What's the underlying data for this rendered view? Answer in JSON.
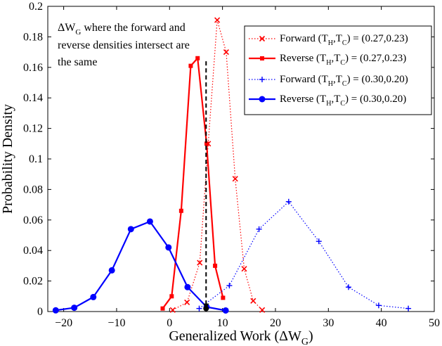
{
  "chart_data": {
    "type": "line",
    "xlabel_main": "Generalized Work (ΔW",
    "xlabel_sub": "G",
    "xlabel_end": ")",
    "ylabel": "Probability Density",
    "xlim": [
      -23,
      50
    ],
    "ylim": [
      0,
      0.2
    ],
    "xticks": [
      -20,
      -10,
      0,
      10,
      20,
      30,
      40,
      50
    ],
    "xtick_labels": [
      "−20",
      "−10",
      "0",
      "10",
      "20",
      "30",
      "40",
      "50"
    ],
    "yticks": [
      0,
      0.02,
      0.04,
      0.06,
      0.08,
      0.1,
      0.12,
      0.14,
      0.16,
      0.18,
      0.2
    ],
    "ytick_labels": [
      "0",
      "0.02",
      "0.04",
      "0.06",
      "0.08",
      "0.1",
      "0.12",
      "0.14",
      "0.16",
      "0.18",
      "0.2"
    ],
    "series": [
      {
        "name": "Forward (T_H,T_C) = (0.27,0.23)",
        "legend_pre": "Forward (T",
        "legend_s1": "H",
        "legend_mid": ",T",
        "legend_s2": "C",
        "legend_post": ") = (0.27,0.23)",
        "color": "#ff0000",
        "line": "dotted",
        "marker": "x",
        "x": [
          0.6,
          3.3,
          5.7,
          7.3,
          9.0,
          10.7,
          12.4,
          14.1,
          15.8,
          17.5
        ],
        "y": [
          0.001,
          0.006,
          0.032,
          0.11,
          0.191,
          0.17,
          0.087,
          0.028,
          0.007,
          0.001
        ]
      },
      {
        "name": "Reverse (T_H,T_C) = (0.27,0.23)",
        "legend_pre": "Reverse (T",
        "legend_s1": "H",
        "legend_mid": ",T",
        "legend_s2": "C",
        "legend_post": ") = (0.27,0.23)",
        "color": "#ff0000",
        "line": "solid",
        "marker": "square",
        "x": [
          -1.3,
          0.4,
          2.2,
          4.0,
          5.3,
          7.0,
          8.6,
          10.1
        ],
        "y": [
          0.002,
          0.01,
          0.066,
          0.161,
          0.166,
          0.11,
          0.03,
          0.009
        ]
      },
      {
        "name": "Forward (T_H,T_C) = (0.30,0.20)",
        "legend_pre": "Forward (T",
        "legend_s1": "H",
        "legend_mid": ",T",
        "legend_s2": "C",
        "legend_post": ") = (0.30,0.20)",
        "color": "#0000ff",
        "line": "dotted",
        "marker": "plus",
        "x": [
          5.6,
          11.3,
          16.9,
          22.5,
          28.2,
          33.8,
          39.5,
          45.1
        ],
        "y": [
          0.002,
          0.017,
          0.054,
          0.072,
          0.046,
          0.016,
          0.004,
          0.002
        ]
      },
      {
        "name": "Reverse (T_H,T_C) = (0.30,0.20)",
        "legend_pre": "Reverse (T",
        "legend_s1": "H",
        "legend_mid": ",T",
        "legend_s2": "C",
        "legend_post": ") = (0.30,0.20)",
        "color": "#0000ff",
        "line": "solid",
        "marker": "circle",
        "x": [
          -21.5,
          -18.0,
          -14.4,
          -10.9,
          -7.3,
          -3.7,
          -0.2,
          3.4,
          7.0,
          10.6
        ],
        "y": [
          0.0008,
          0.0025,
          0.0095,
          0.027,
          0.054,
          0.059,
          0.042,
          0.016,
          0.003,
          0.0007
        ]
      }
    ],
    "vline": {
      "x": 6.9,
      "y_from": 0,
      "y_to": 0.164,
      "style": "dashed",
      "color": "#000000"
    },
    "intersection_point": {
      "x": 6.9,
      "y": 0.002
    },
    "annotation": {
      "line1_pre": "ΔW",
      "line1_sub": "G",
      "line1_post": " where the forward and",
      "line2": "reverse densities intersect are",
      "line3": "the same"
    },
    "legend_position": "top-right"
  }
}
